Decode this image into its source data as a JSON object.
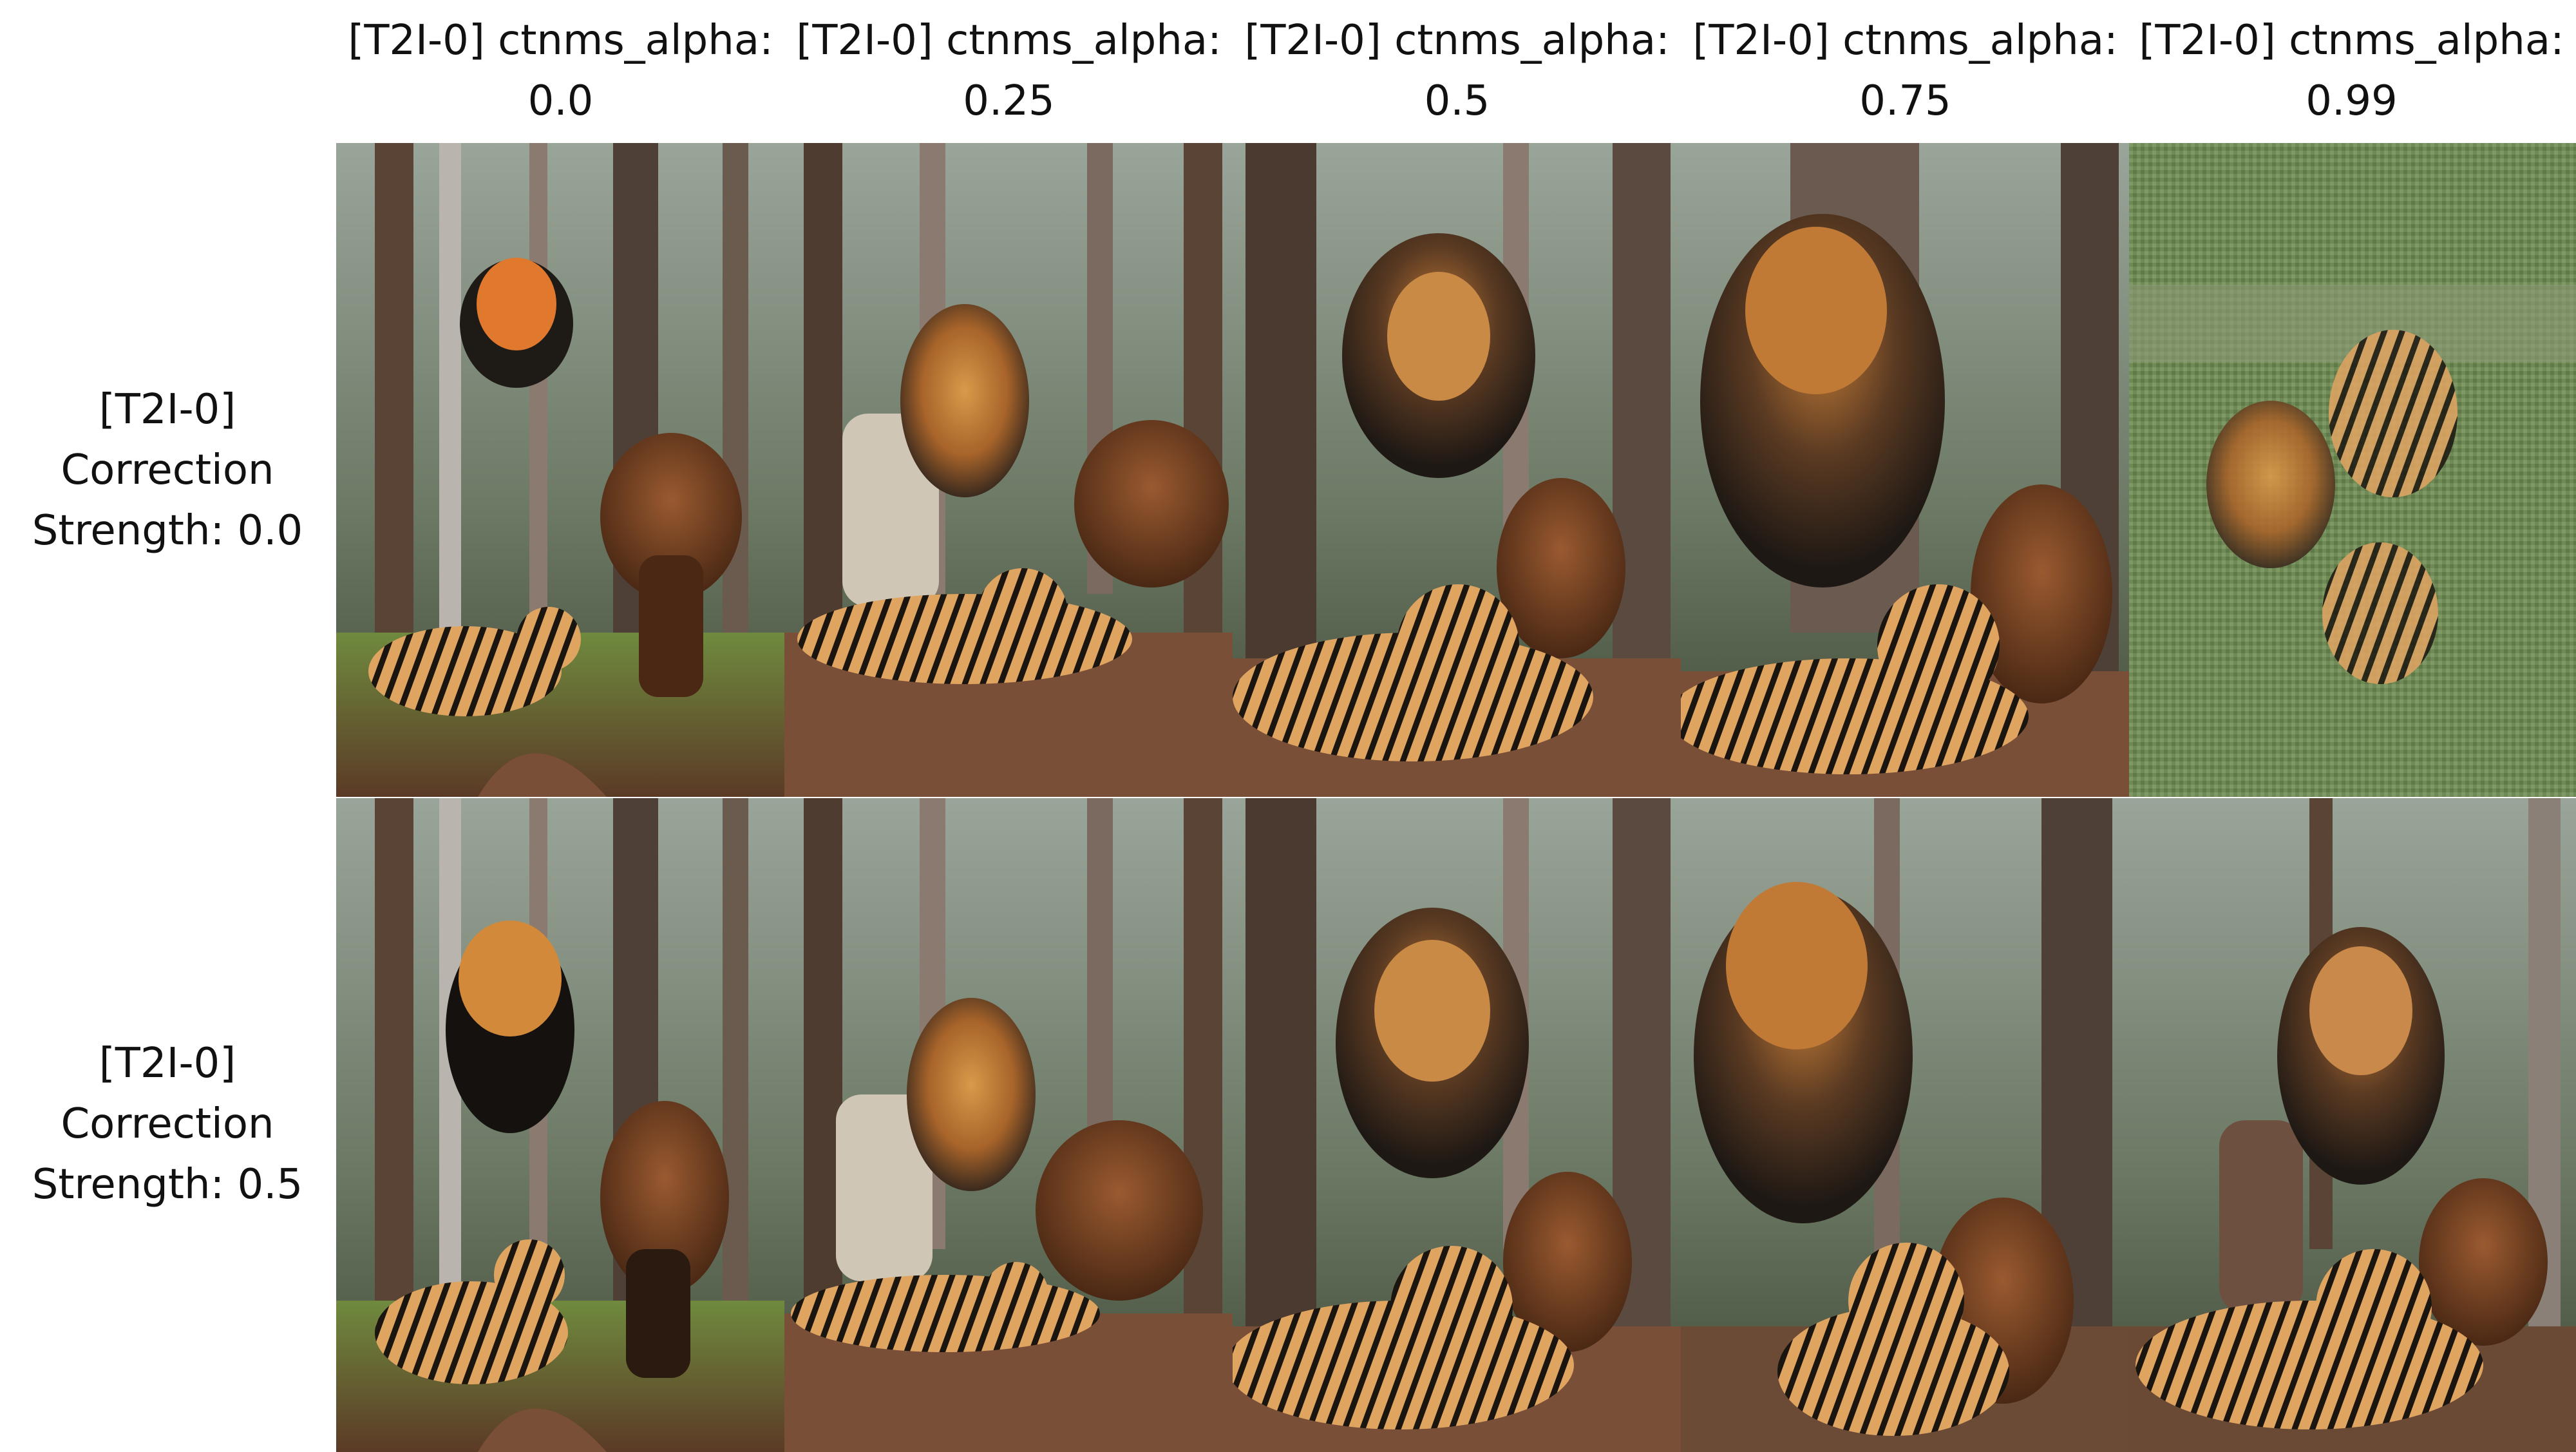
{
  "columns": [
    {
      "line1": "[T2I-0] ctnms_alpha:",
      "line2": "0.0"
    },
    {
      "line1": "[T2I-0] ctnms_alpha:",
      "line2": "0.25"
    },
    {
      "line1": "[T2I-0] ctnms_alpha:",
      "line2": "0.5"
    },
    {
      "line1": "[T2I-0] ctnms_alpha:",
      "line2": "0.75"
    },
    {
      "line1": "[T2I-0] ctnms_alpha:",
      "line2": "0.99"
    }
  ],
  "rows": [
    {
      "line1": "[T2I-0]",
      "line2": "Correction",
      "line3": "Strength: 0.0"
    },
    {
      "line1": "[T2I-0]",
      "line2": "Correction",
      "line3": "Strength: 0.5"
    }
  ],
  "images": {
    "subject": "lion, tiger and bear in a pine forest",
    "palette": {
      "forest_dark": "#4d5b44",
      "forest_light": "#8c9a86",
      "trunk": "#5a4436",
      "ground": "#7a4f37",
      "grass": "#6f8a3e",
      "lion_mane": "#b8742f",
      "lion_dark_mane": "#2a221c",
      "tiger": "#d89a56",
      "bear": "#6e3f22",
      "noise_green": "#6f8a55"
    }
  }
}
